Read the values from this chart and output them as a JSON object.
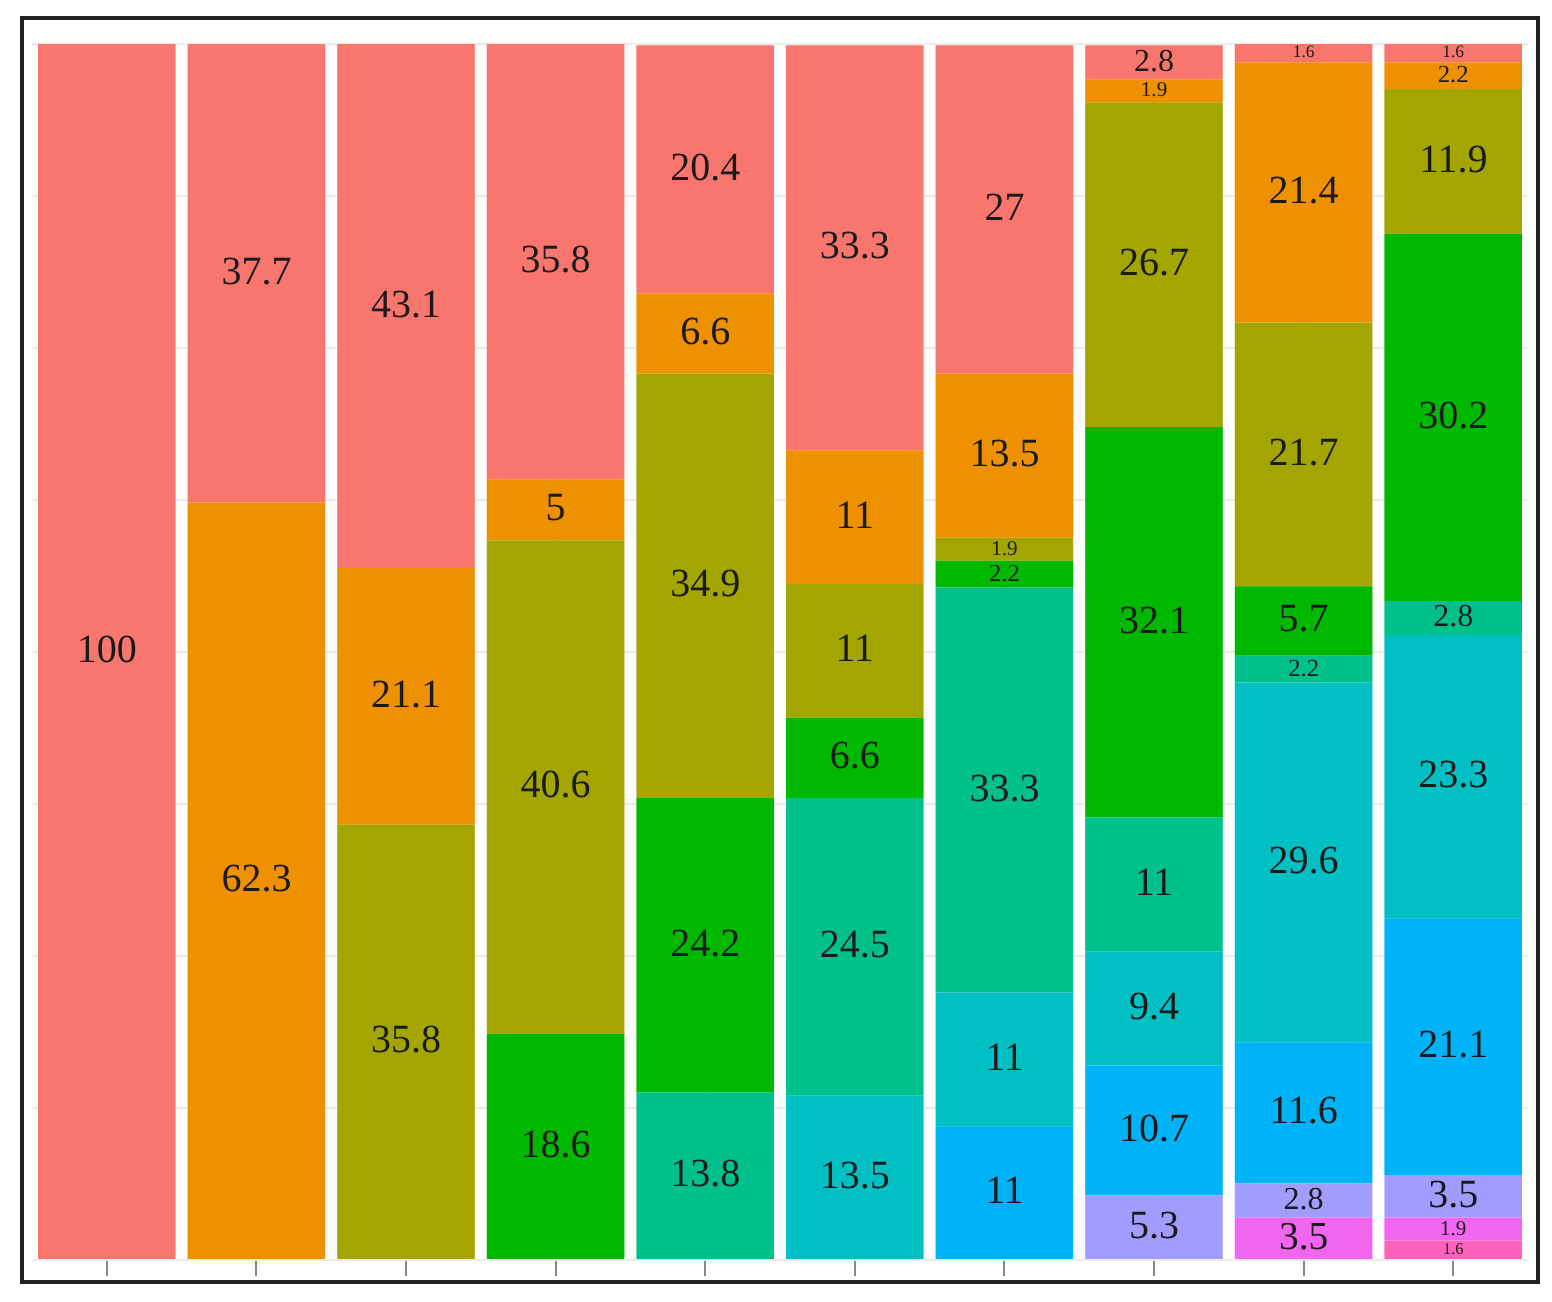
{
  "chart_data": {
    "type": "bar",
    "stacked": true,
    "data_labels": true,
    "grid": true,
    "tick_labels": false,
    "legend": false,
    "categories": [
      null,
      null,
      null,
      null,
      null,
      null,
      null,
      null,
      null,
      null
    ],
    "ylim": [
      0,
      100
    ],
    "yticks": [
      0,
      12.5,
      25,
      37.5,
      50,
      62.5,
      75,
      87.5,
      100
    ],
    "series": [
      {
        "color": "#FF62BC",
        "values": [
          null,
          null,
          null,
          null,
          null,
          null,
          null,
          null,
          null,
          1.6
        ]
      },
      {
        "color": "#F066EE",
        "values": [
          null,
          null,
          null,
          null,
          null,
          null,
          null,
          null,
          3.5,
          1.9
        ]
      },
      {
        "color": "#A29CFF",
        "values": [
          null,
          null,
          null,
          null,
          null,
          null,
          null,
          5.3,
          2.8,
          3.5
        ]
      },
      {
        "color": "#00B2F6",
        "values": [
          null,
          null,
          null,
          null,
          null,
          null,
          11,
          10.7,
          11.6,
          21.1
        ]
      },
      {
        "color": "#00C0C4",
        "values": [
          null,
          null,
          null,
          null,
          null,
          13.5,
          11,
          9.4,
          29.6,
          23.3
        ]
      },
      {
        "color": "#00C08B",
        "values": [
          null,
          null,
          null,
          null,
          13.8,
          24.5,
          33.3,
          11,
          2.2,
          2.8
        ]
      },
      {
        "color": "#00B800",
        "values": [
          null,
          null,
          null,
          18.6,
          24.2,
          6.6,
          2.2,
          32.1,
          5.7,
          30.2
        ]
      },
      {
        "color": "#A3A500",
        "values": [
          null,
          null,
          35.8,
          40.6,
          34.9,
          11,
          1.9,
          26.7,
          21.7,
          11.9
        ]
      },
      {
        "color": "#ED9100",
        "values": [
          null,
          62.3,
          21.1,
          5,
          6.6,
          11,
          13.5,
          1.9,
          21.4,
          2.2
        ]
      },
      {
        "color": "#F8766D",
        "values": [
          100,
          37.7,
          43.1,
          35.8,
          20.4,
          33.3,
          27,
          2.8,
          1.6,
          1.6
        ]
      }
    ]
  }
}
